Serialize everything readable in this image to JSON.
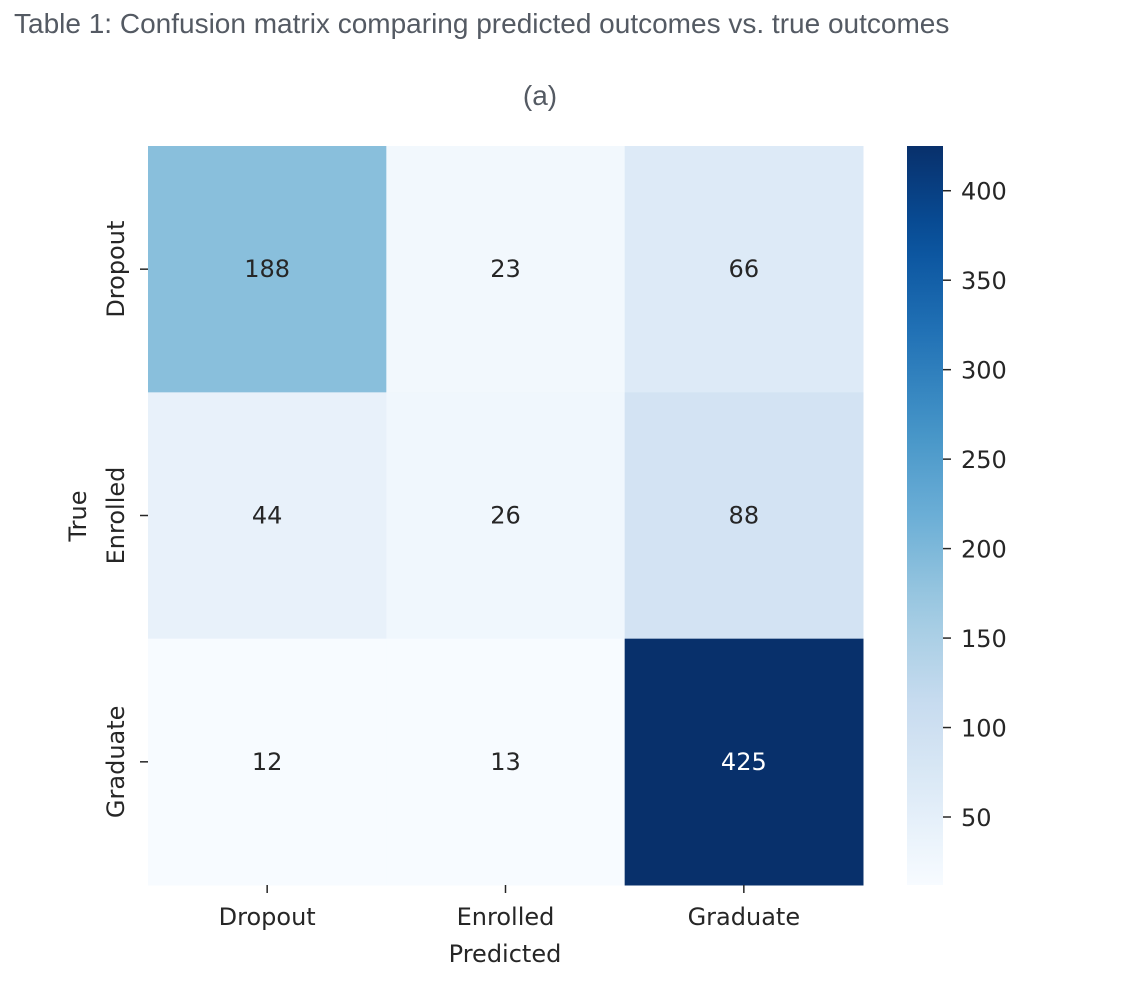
{
  "caption": "Table 1: Confusion matrix comparing predicted outcomes vs. true outcomes",
  "subcaption": "(a)",
  "chart_data": {
    "type": "heatmap",
    "xlabel": "Predicted",
    "ylabel": "True",
    "x_categories": [
      "Dropout",
      "Enrolled",
      "Graduate"
    ],
    "y_categories": [
      "Dropout",
      "Enrolled",
      "Graduate"
    ],
    "values": [
      [
        188,
        23,
        66
      ],
      [
        44,
        26,
        88
      ],
      [
        12,
        13,
        425
      ]
    ],
    "colormap": "Blues",
    "colorbar": {
      "min": 12,
      "max": 425,
      "ticks": [
        50,
        100,
        150,
        200,
        250,
        300,
        350,
        400
      ]
    },
    "text_dark": "#262626",
    "text_light": "#ffffff"
  }
}
